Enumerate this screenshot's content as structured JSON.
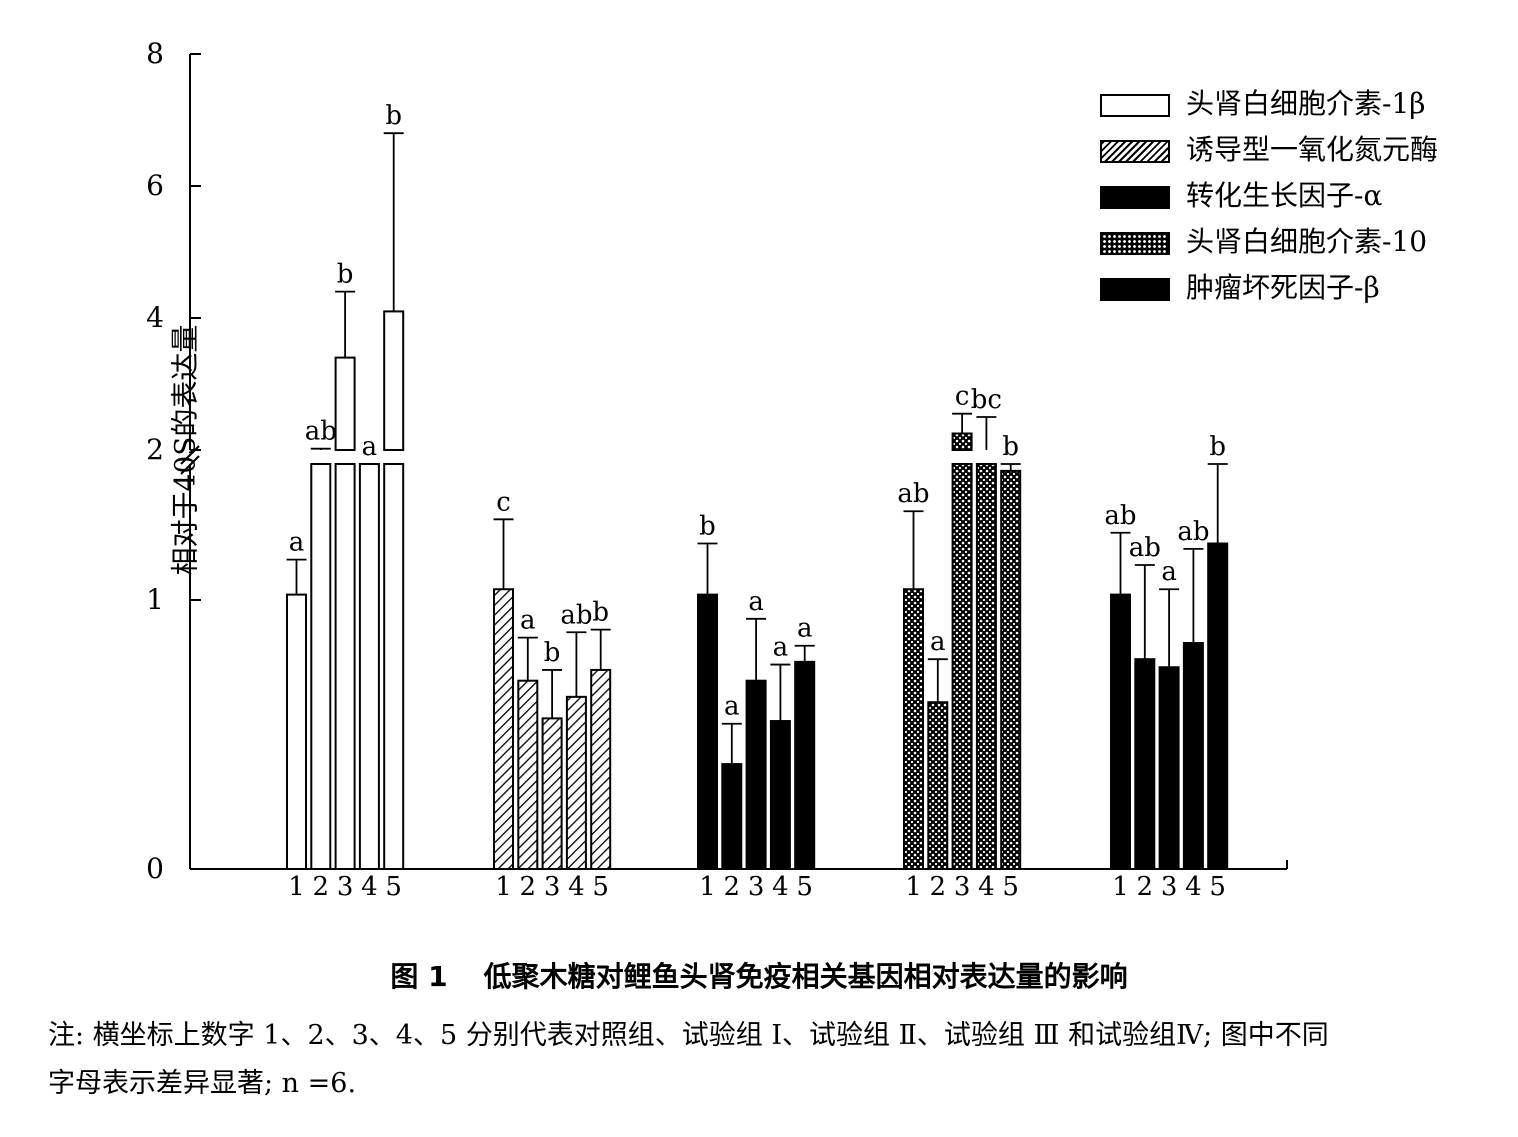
{
  "figure": {
    "caption_number": "图 1",
    "caption_title": "低聚木糖对鲤鱼头肾免疫相关基因相对表达量的影响",
    "note_line1": "注: 横坐标上数字 1、2、3、4、5 分别代表对照组、试验组 Ⅰ、试验组 Ⅱ、试验组 Ⅲ 和试验组Ⅳ; 图中不同",
    "note_line2": "字母表示差异显著;  n =6."
  },
  "chart_data": {
    "type": "bar",
    "ylabel": "相对于40S的表达量",
    "y_ticks": [
      "0",
      "1",
      "2",
      "4",
      "6",
      "8"
    ],
    "y_axis_break": "between 1.5 and 2",
    "x_tick_labels": [
      "1",
      "2",
      "3",
      "4",
      "5"
    ],
    "legend_position": "top-right",
    "series": [
      {
        "name": "头肾白细胞介素-1β",
        "pattern": "white",
        "values": [
          1.02,
          2.0,
          3.4,
          1.72,
          4.1
        ],
        "errors": [
          0.13,
          0.02,
          1.0,
          0.1,
          2.7
        ],
        "letters": [
          "a",
          "ab",
          "b",
          "a",
          "b"
        ]
      },
      {
        "name": "诱导型一氧化氮元酶",
        "pattern": "hatch",
        "values": [
          1.04,
          0.7,
          0.56,
          0.64,
          0.74
        ],
        "errors": [
          0.26,
          0.16,
          0.18,
          0.24,
          0.15
        ],
        "letters": [
          "c",
          "a",
          "b",
          "ab",
          "b"
        ]
      },
      {
        "name": "转化生长因子-α",
        "pattern": "black",
        "values": [
          1.02,
          0.39,
          0.7,
          0.55,
          0.77
        ],
        "errors": [
          0.19,
          0.15,
          0.23,
          0.21,
          0.06
        ],
        "letters": [
          "b",
          "a",
          "a",
          "a",
          "a"
        ]
      },
      {
        "name": "头肾白细胞介素-10",
        "pattern": "crosshatch",
        "values": [
          1.04,
          0.62,
          2.25,
          2.0,
          1.48
        ],
        "errors": [
          0.29,
          0.16,
          0.3,
          0.5,
          0.05
        ],
        "letters": [
          "ab",
          "a",
          "c",
          "bc",
          "b"
        ]
      },
      {
        "name": "肿瘤坏死因子-β",
        "pattern": "black",
        "values": [
          1.02,
          0.78,
          0.75,
          0.84,
          1.21
        ],
        "errors": [
          0.23,
          0.35,
          0.29,
          0.35,
          0.55
        ],
        "letters": [
          "ab",
          "ab",
          "a",
          "ab",
          "b"
        ]
      }
    ]
  }
}
